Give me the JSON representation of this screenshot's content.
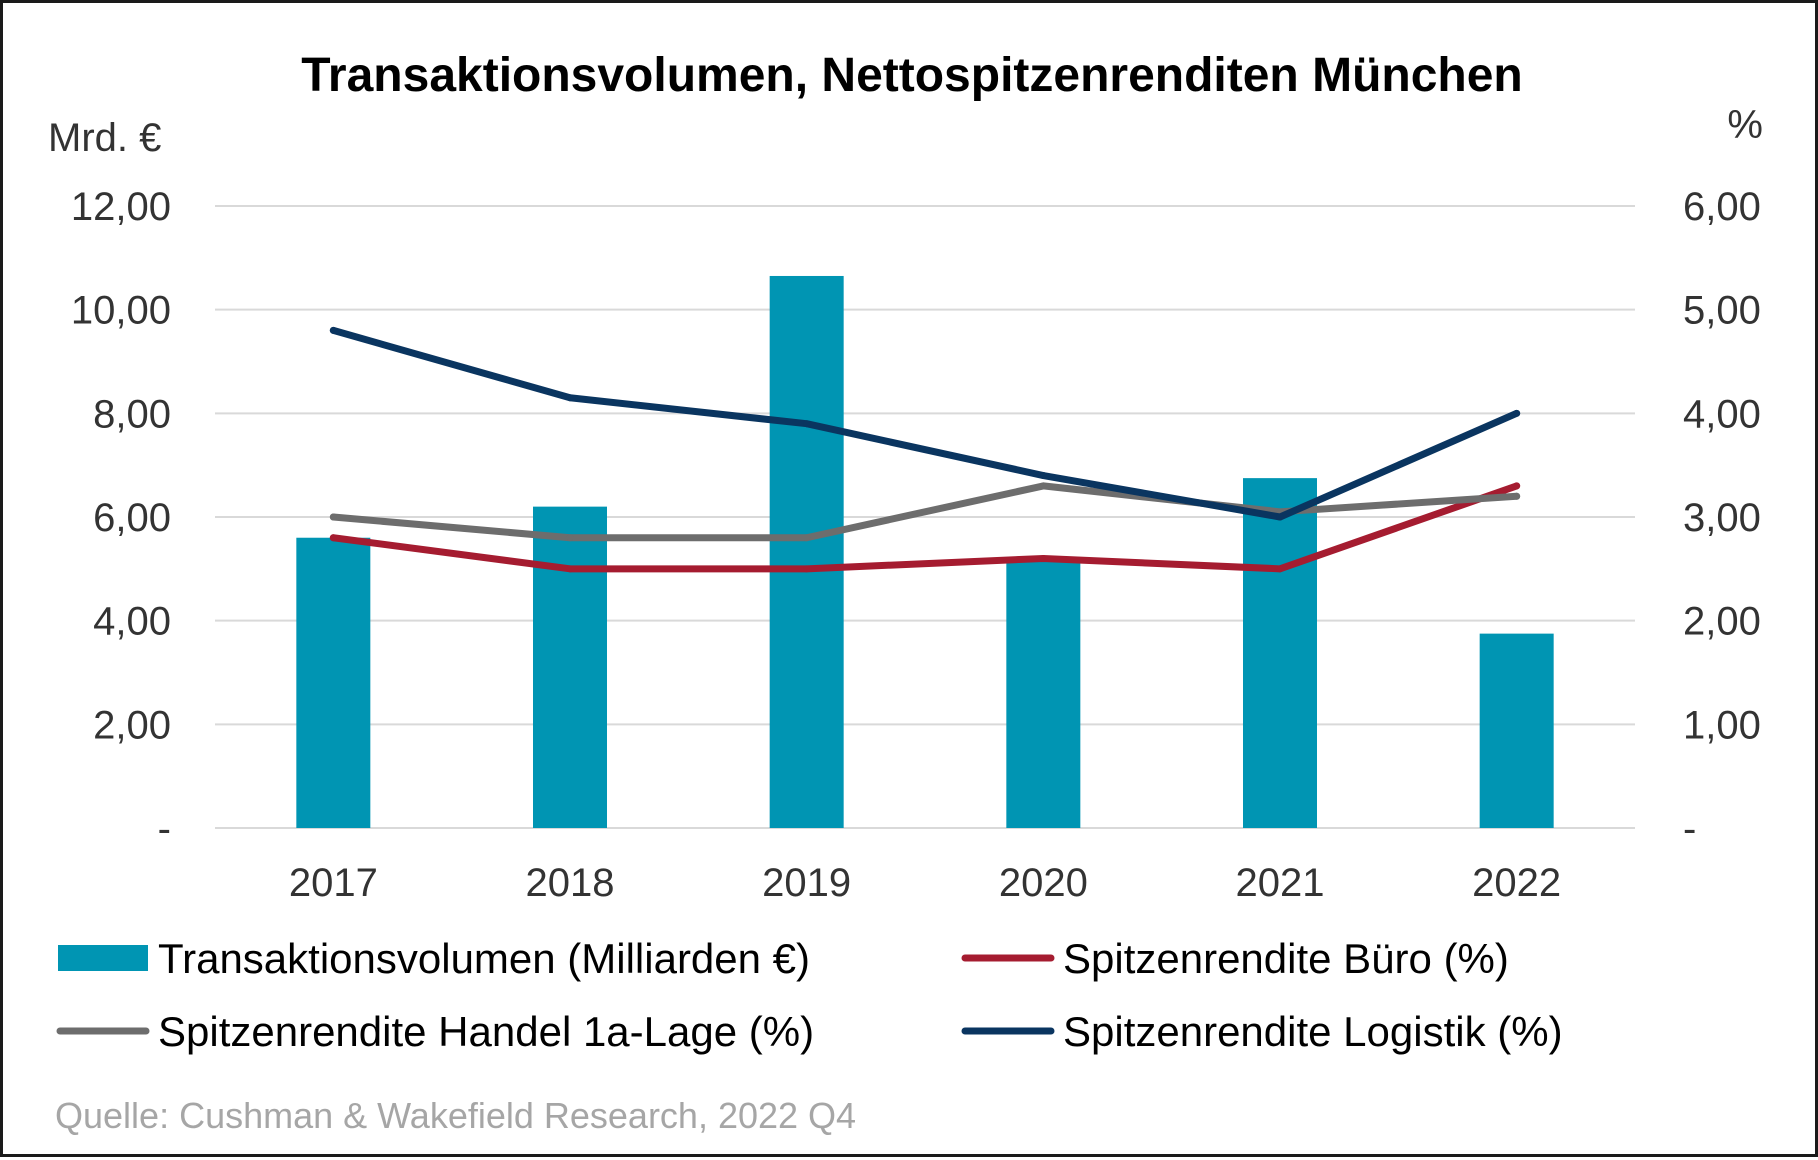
{
  "chart_data": {
    "type": "bar+line",
    "title": "Transaktionsvolumen, Nettospitzenrenditen München",
    "y_left_label": "Mrd. €",
    "y_right_label": "%",
    "categories": [
      "2017",
      "2018",
      "2019",
      "2020",
      "2021",
      "2022"
    ],
    "y_left": {
      "min": 0,
      "max": 12,
      "ticks": [
        "-",
        "2,00",
        "4,00",
        "6,00",
        "8,00",
        "10,00",
        "12,00"
      ]
    },
    "y_right": {
      "min": 0,
      "max": 6,
      "ticks": [
        "-",
        "1,00",
        "2,00",
        "3,00",
        "4,00",
        "5,00",
        "6,00"
      ]
    },
    "grid": true,
    "legend_position": "bottom",
    "series": [
      {
        "name": "Transaktionsvolumen (Milliarden €)",
        "type": "bar",
        "axis": "left",
        "color": "#0095b3",
        "values": [
          5.6,
          6.2,
          10.65,
          5.2,
          6.75,
          3.75
        ]
      },
      {
        "name": "Spitzenrendite Büro (%)",
        "type": "line",
        "axis": "right",
        "color": "#a51c30",
        "values": [
          2.8,
          2.5,
          2.5,
          2.6,
          2.5,
          3.3
        ]
      },
      {
        "name": "Spitzenrendite Handel 1a-Lage (%)",
        "type": "line",
        "axis": "right",
        "color": "#6d6d6d",
        "values": [
          3.0,
          2.8,
          2.8,
          3.3,
          3.05,
          3.2
        ]
      },
      {
        "name": "Spitzenrendite Logistik (%)",
        "type": "line",
        "axis": "right",
        "color": "#0a3560",
        "values": [
          4.8,
          4.15,
          3.9,
          3.4,
          3.0,
          4.0
        ]
      }
    ],
    "source": "Quelle: Cushman & Wakefield Research, 2022 Q4",
    "grid_color": "#d9d9d9"
  }
}
